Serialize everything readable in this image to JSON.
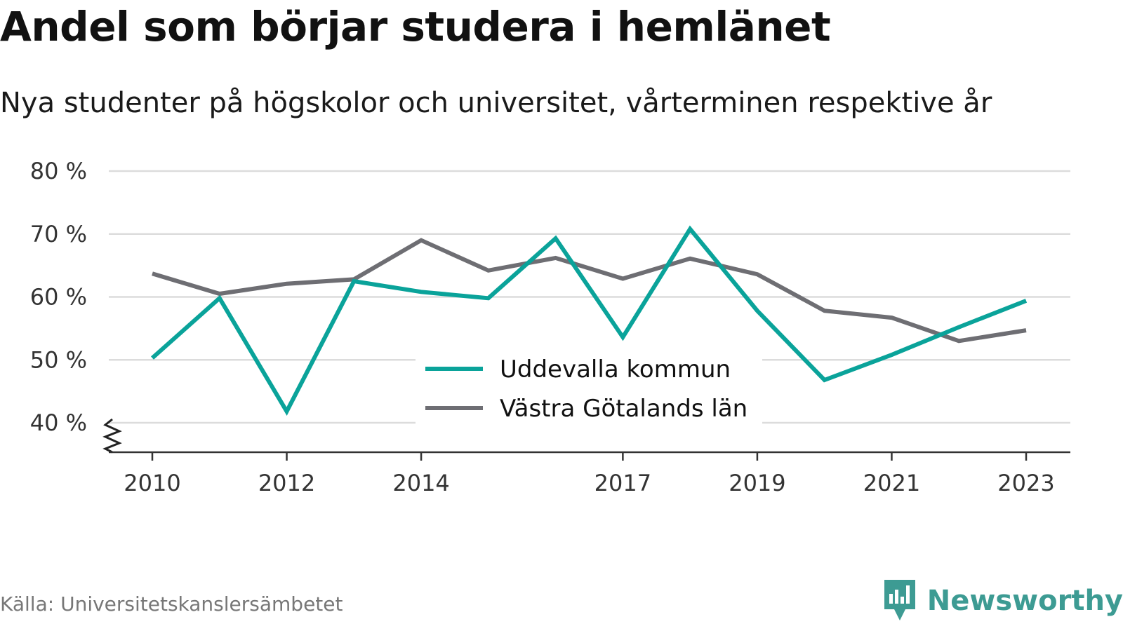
{
  "title": "Andel som börjar studera i hemlänet",
  "subtitle": "Nya studenter på högskolor och universitet, vårterminen respektive år",
  "source": "Källa: Universitetskanslersämbetet",
  "brand": {
    "name": "Newsworthy",
    "icon": "newsworthy-logo-icon",
    "color": "#3d9b93"
  },
  "chart_data": {
    "type": "line",
    "title": "Andel som börjar studera i hemlänet",
    "subtitle": "Nya studenter på högskolor och universitet, vårterminen respektive år",
    "x": [
      2010,
      2011,
      2012,
      2013,
      2014,
      2015,
      2016,
      2017,
      2018,
      2019,
      2020,
      2021,
      2022,
      2023
    ],
    "x_tick_labels": [
      "2010",
      "2012",
      "2014",
      "2017",
      "2019",
      "2021",
      "2023"
    ],
    "y_tick_labels": [
      "80 %",
      "70 %",
      "60 %",
      "50 %",
      "40 %"
    ],
    "y_ticks": [
      80,
      70,
      60,
      50,
      40
    ],
    "ylim": [
      35.5,
      80
    ],
    "xlim": [
      2009.35,
      2023.65
    ],
    "grid": true,
    "axis_break": true,
    "legend_position": "bottom-center",
    "series": [
      {
        "name": "Uddevalla kommun",
        "color": "#0aa39a",
        "values": [
          50.3,
          59.8,
          41.8,
          62.5,
          60.8,
          59.8,
          69.3,
          53.6,
          70.8,
          57.8,
          46.8,
          50.8,
          55.2,
          59.4
        ]
      },
      {
        "name": "Västra Götalands län",
        "color": "#6e6e73",
        "values": [
          63.7,
          60.5,
          62.1,
          62.8,
          69.0,
          64.2,
          66.2,
          62.9,
          66.1,
          63.6,
          57.8,
          56.7,
          53.0,
          54.7
        ]
      }
    ]
  }
}
